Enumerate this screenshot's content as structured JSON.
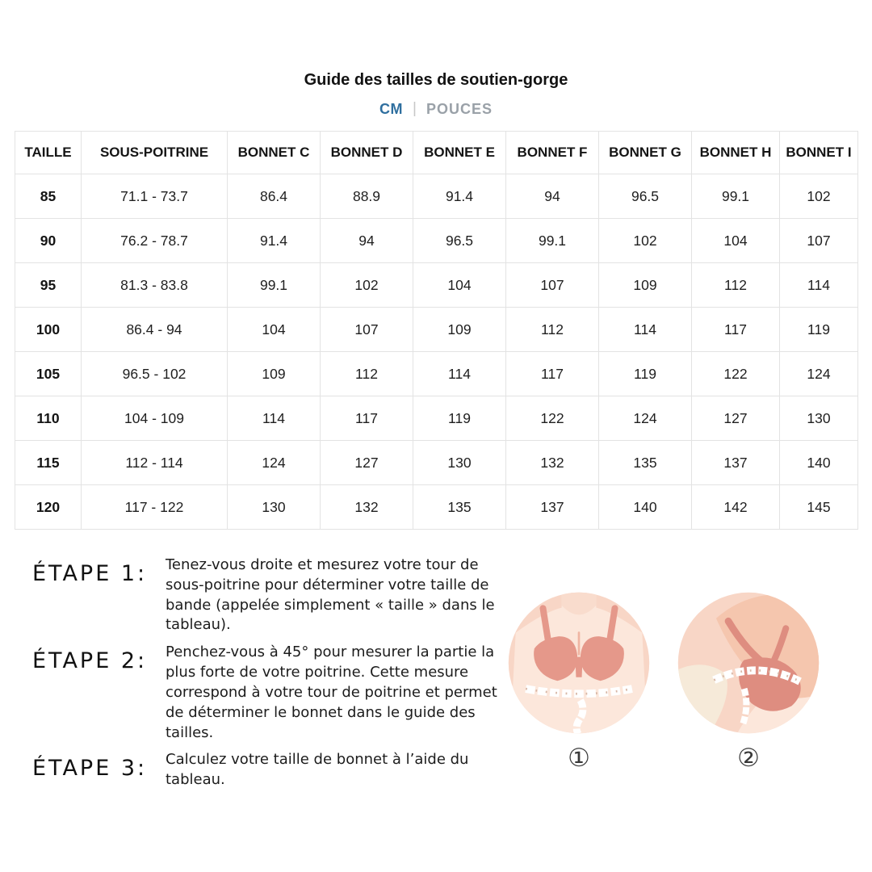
{
  "title": "Guide des tailles de soutien-gorge",
  "unit_toggle": {
    "cm_label": "CM",
    "divider": "|",
    "pouces_label": "POUCES",
    "active_unit": "CM"
  },
  "colors": {
    "accent_blue": "#2f6f9f",
    "inactive_gray": "#9aa1a8",
    "table_border": "#e3e3e3",
    "illustration_circle_peach": "#f8d6c6",
    "illustration_skin": "#fce7db",
    "illustration_bra_pink": "#e5988a",
    "tape_white": "#ffffff"
  },
  "table": {
    "headers": [
      "TAILLE",
      "SOUS-POITRINE",
      "BONNET C",
      "BONNET D",
      "BONNET E",
      "BONNET F",
      "BONNET G",
      "BONNET H",
      "BONNET I"
    ],
    "rows": [
      [
        "85",
        "71.1 - 73.7",
        "86.4",
        "88.9",
        "91.4",
        "94",
        "96.5",
        "99.1",
        "102"
      ],
      [
        "90",
        "76.2 - 78.7",
        "91.4",
        "94",
        "96.5",
        "99.1",
        "102",
        "104",
        "107"
      ],
      [
        "95",
        "81.3 - 83.8",
        "99.1",
        "102",
        "104",
        "107",
        "109",
        "112",
        "114"
      ],
      [
        "100",
        "86.4 - 94",
        "104",
        "107",
        "109",
        "112",
        "114",
        "117",
        "119"
      ],
      [
        "105",
        "96.5 - 102",
        "109",
        "112",
        "114",
        "117",
        "119",
        "122",
        "124"
      ],
      [
        "110",
        "104 - 109",
        "114",
        "117",
        "119",
        "122",
        "124",
        "127",
        "130"
      ],
      [
        "115",
        "112 - 114",
        "124",
        "127",
        "130",
        "132",
        "135",
        "137",
        "140"
      ],
      [
        "120",
        "117 - 122",
        "130",
        "132",
        "135",
        "137",
        "140",
        "142",
        "145"
      ]
    ]
  },
  "steps": [
    {
      "label": "ÉTAPE 1:",
      "text": "Tenez-vous droite et mesurez votre tour de sous-poitrine pour déterminer votre taille de bande (appelée simplement « taille » dans le tableau)."
    },
    {
      "label": "ÉTAPE 2:",
      "text": "Penchez-vous à 45° pour mesurer la partie la plus forte de votre poitrine. Cette mesure correspond à votre tour de poitrine et permet de déterminer le bonnet dans le guide des tailles."
    },
    {
      "label": "ÉTAPE 3:",
      "text": "Calculez votre taille de bonnet à l’aide du tableau."
    }
  ],
  "figures": [
    {
      "number": "①"
    },
    {
      "number": "②"
    }
  ]
}
